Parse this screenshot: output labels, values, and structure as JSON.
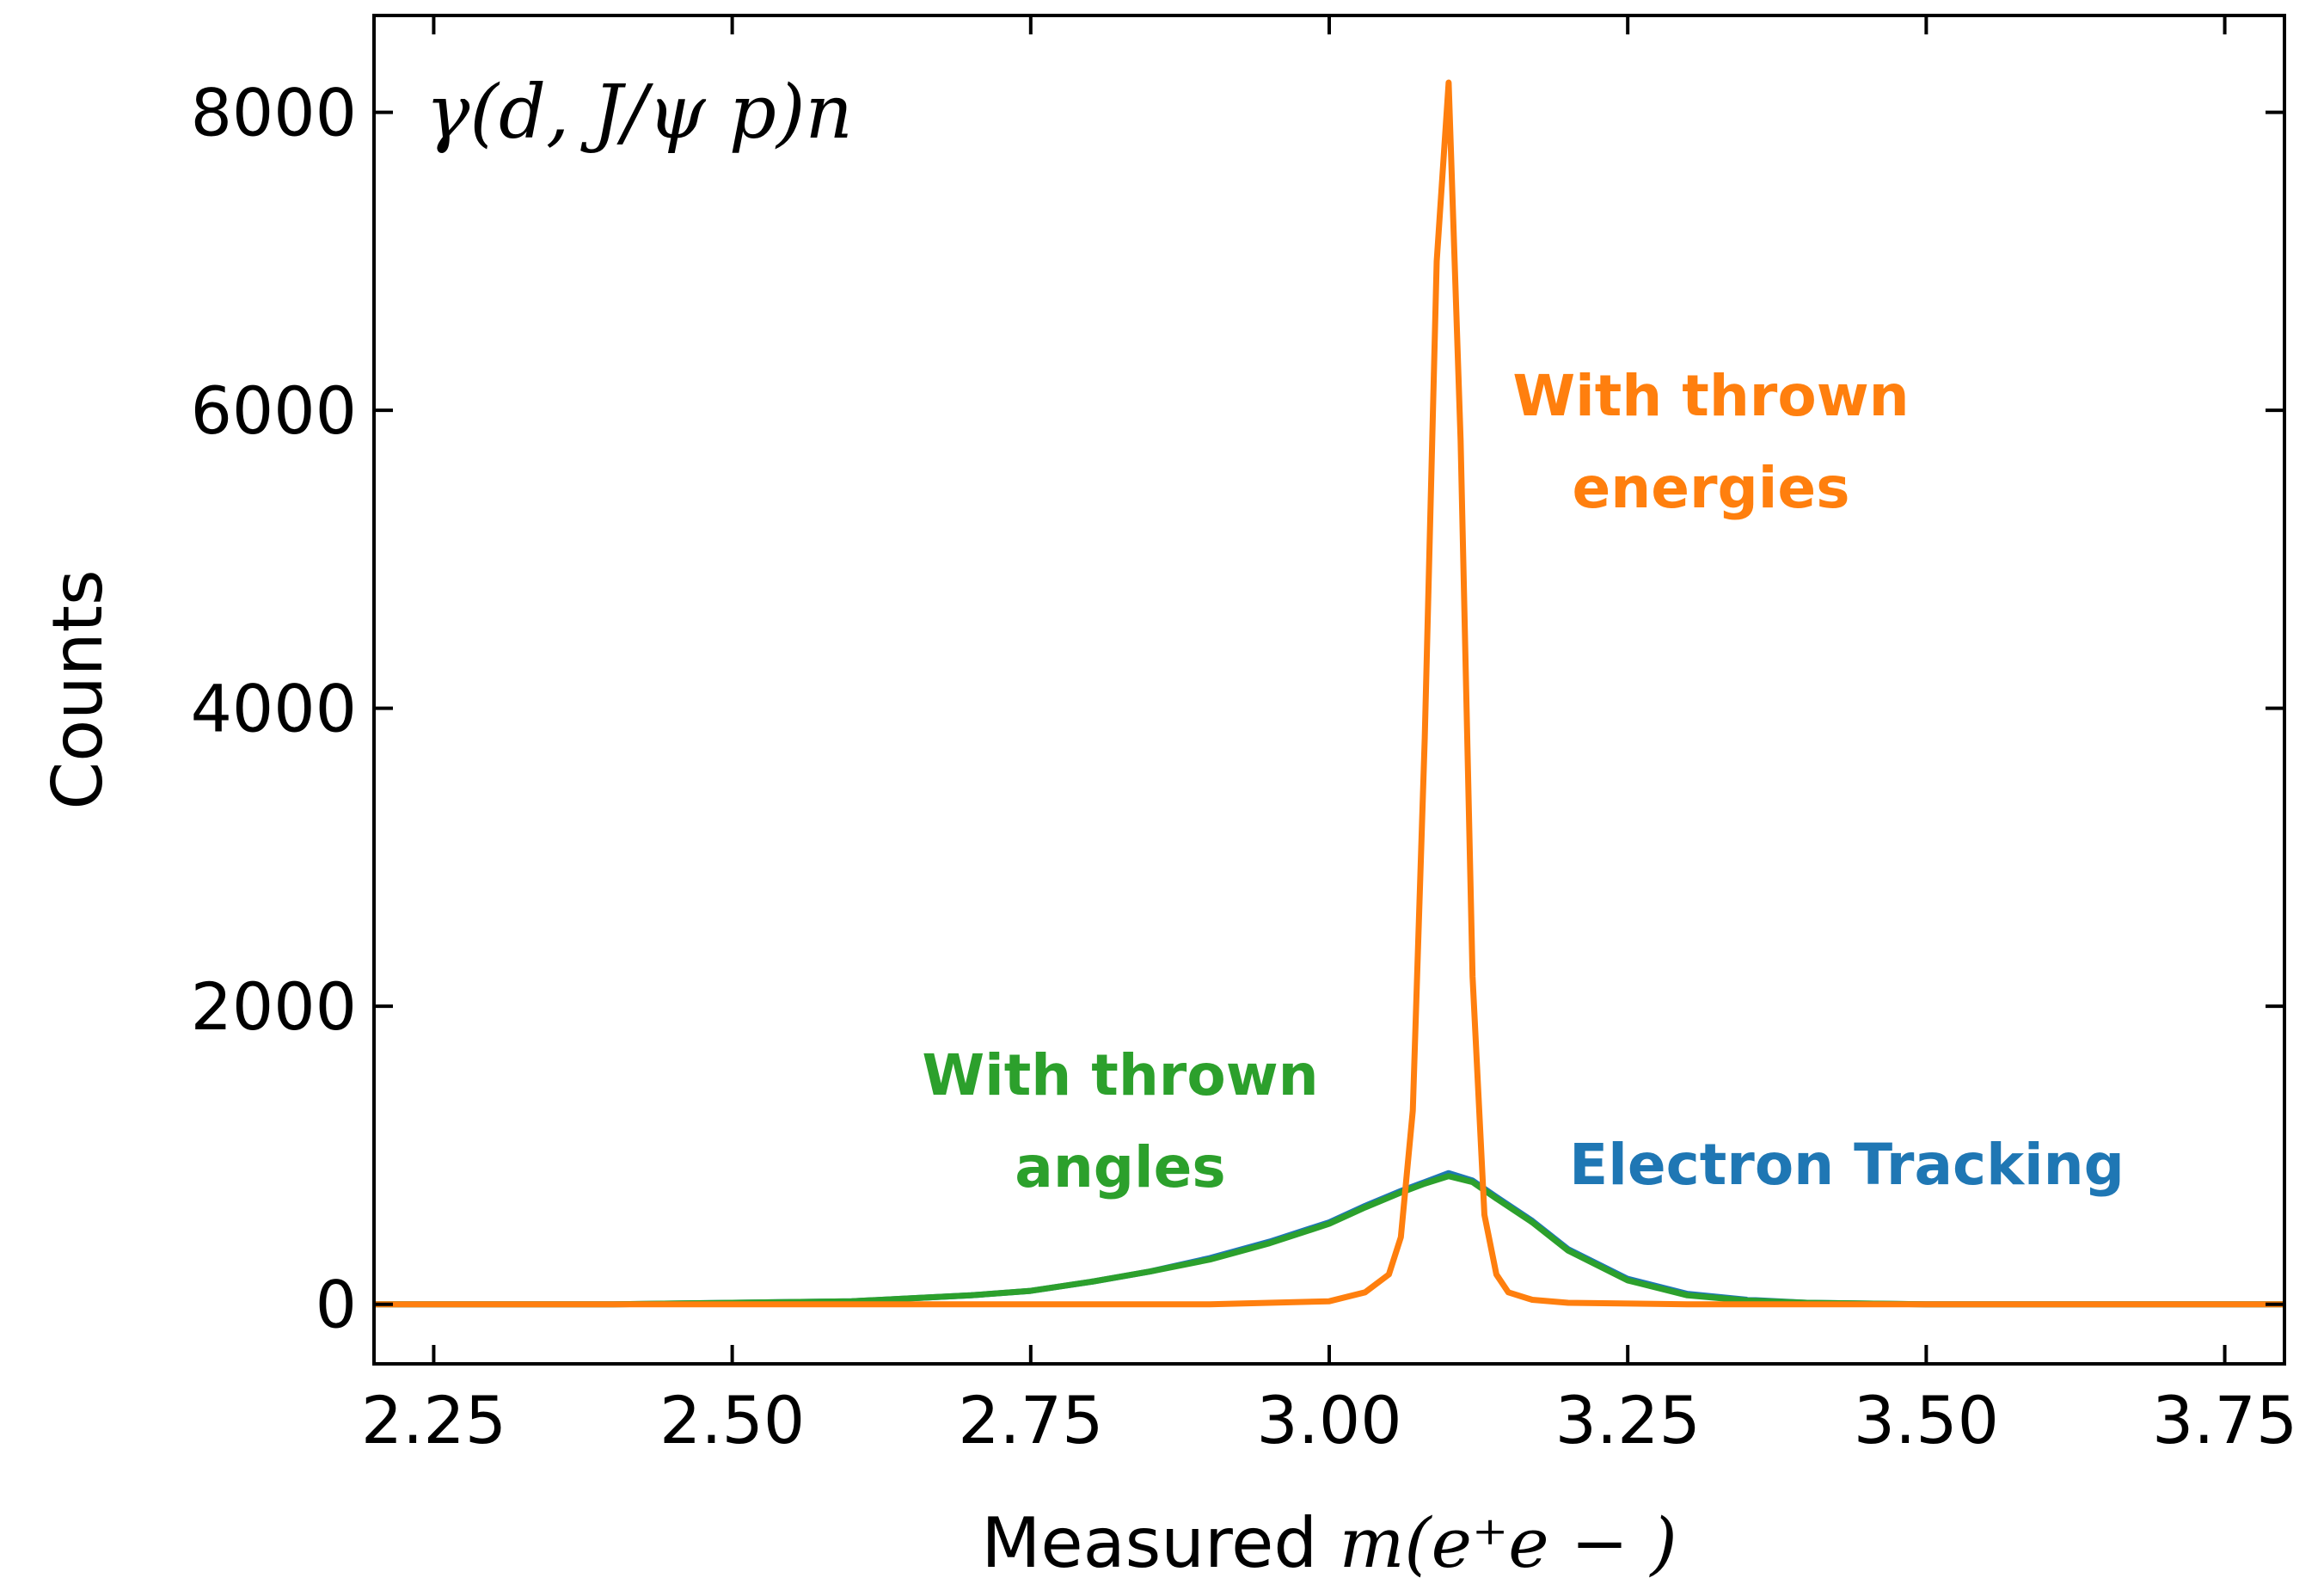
{
  "chart_data": {
    "type": "line",
    "title": "",
    "reaction_label": "γ(d, J/ψ p)n",
    "xlabel_prefix": "Measured ",
    "xlabel_math": "m(e⁺e − )",
    "ylabel": "Counts",
    "xlim": [
      2.2,
      3.8
    ],
    "ylim": [
      -400,
      8650
    ],
    "xticks": [
      2.25,
      2.5,
      2.75,
      3.0,
      3.25,
      3.5,
      3.75
    ],
    "xtick_labels": [
      "2.25",
      "2.50",
      "2.75",
      "3.00",
      "3.25",
      "3.50",
      "3.75"
    ],
    "yticks": [
      0,
      2000,
      4000,
      6000,
      8000
    ],
    "ytick_labels": [
      "0",
      "2000",
      "4000",
      "6000",
      "8000"
    ],
    "grid": false,
    "series": [
      {
        "name": "Electron Tracking",
        "color": "#1f77b4",
        "x": [
          2.2,
          2.4,
          2.5,
          2.6,
          2.65,
          2.7,
          2.75,
          2.8,
          2.85,
          2.9,
          2.95,
          3.0,
          3.03,
          3.06,
          3.08,
          3.1,
          3.12,
          3.14,
          3.17,
          3.2,
          3.25,
          3.3,
          3.35,
          3.4,
          3.5,
          3.8
        ],
        "y": [
          0,
          0,
          10,
          20,
          40,
          60,
          90,
          150,
          220,
          310,
          420,
          550,
          660,
          760,
          820,
          880,
          830,
          720,
          560,
          370,
          170,
          70,
          30,
          10,
          0,
          0
        ]
      },
      {
        "name": "With thrown energies",
        "color": "#ff7f0e",
        "x": [
          2.2,
          2.9,
          3.0,
          3.03,
          3.05,
          3.06,
          3.07,
          3.08,
          3.09,
          3.1,
          3.11,
          3.12,
          3.13,
          3.14,
          3.15,
          3.17,
          3.2,
          3.3,
          3.8
        ],
        "y": [
          0,
          0,
          20,
          80,
          200,
          450,
          1300,
          3800,
          7000,
          8200,
          5800,
          2200,
          600,
          200,
          80,
          30,
          10,
          0,
          0
        ]
      },
      {
        "name": "With thrown angles",
        "color": "#2ca02c",
        "x": [
          2.2,
          2.4,
          2.5,
          2.6,
          2.65,
          2.7,
          2.75,
          2.8,
          2.85,
          2.9,
          2.95,
          3.0,
          3.03,
          3.06,
          3.08,
          3.1,
          3.12,
          3.14,
          3.17,
          3.2,
          3.25,
          3.3,
          3.35,
          3.4,
          3.5,
          3.8
        ],
        "y": [
          0,
          0,
          10,
          20,
          40,
          60,
          90,
          150,
          220,
          300,
          410,
          540,
          650,
          750,
          810,
          860,
          820,
          710,
          550,
          360,
          160,
          60,
          25,
          10,
          0,
          0
        ]
      }
    ],
    "annotations": [
      {
        "lines": [
          "With thrown",
          "energies"
        ],
        "color": "#ff7f0e"
      },
      {
        "lines": [
          "With thrown",
          "angles"
        ],
        "color": "#2ca02c"
      },
      {
        "lines": [
          "Electron Tracking"
        ],
        "color": "#1f77b4"
      }
    ]
  }
}
